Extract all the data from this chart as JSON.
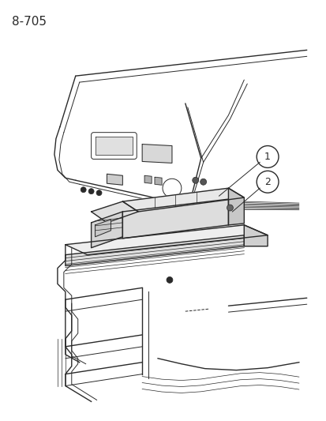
{
  "page_id": "8-705",
  "background_color": "#ffffff",
  "line_color": "#2a2a2a",
  "label1": "1",
  "label2": "2",
  "figsize": [
    4.14,
    5.33
  ],
  "dpi": 100
}
